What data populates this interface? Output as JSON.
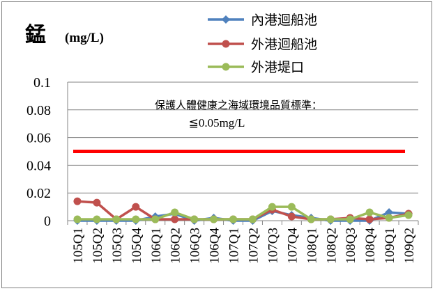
{
  "chart_data": {
    "type": "line",
    "title_main": "錳",
    "title_unit": "(mg/L)",
    "categories": [
      "105Q1",
      "105Q2",
      "105Q3",
      "105Q4",
      "106Q1",
      "106Q2",
      "106Q3",
      "106Q4",
      "107Q1",
      "107Q2",
      "107Q3",
      "107Q4",
      "108Q1",
      "108Q2",
      "108Q3",
      "108Q4",
      "109Q1",
      "109Q2"
    ],
    "ylim": [
      0,
      0.1
    ],
    "yticks": [
      "0",
      "0.02",
      "0.04",
      "0.06",
      "0.08",
      "0.1"
    ],
    "grid": true,
    "legend_position": "top-right",
    "series": [
      {
        "name": "內港迴船池",
        "color": "#4f81bd",
        "values": [
          0,
          0,
          0,
          0,
          0.003,
          0.005,
          0,
          0.002,
          0,
          0,
          0.007,
          0.004,
          0.002,
          0,
          0,
          0,
          0.006,
          0.005
        ]
      },
      {
        "name": "外港迴船池",
        "color": "#c0504d",
        "values": [
          0.014,
          0.013,
          0.001,
          0.01,
          0.001,
          0.001,
          0.001,
          0.001,
          0.001,
          0.001,
          0.008,
          0.003,
          0.001,
          0.001,
          0.002,
          0.001,
          0.002,
          0.005
        ]
      },
      {
        "name": "外港堤口",
        "color": "#9bbb59",
        "values": [
          0.001,
          0.001,
          0.001,
          0.001,
          0.001,
          0.006,
          0.001,
          0.001,
          0.001,
          0.001,
          0.01,
          0.01,
          0.001,
          0.001,
          0.001,
          0.006,
          0.002,
          0.004
        ]
      }
    ],
    "standard": {
      "value": 0.05,
      "color": "#ff0000",
      "label_line1": "保護人體健康之海域環境品質標準：",
      "label_line2": "≦0.05mg/L"
    }
  }
}
